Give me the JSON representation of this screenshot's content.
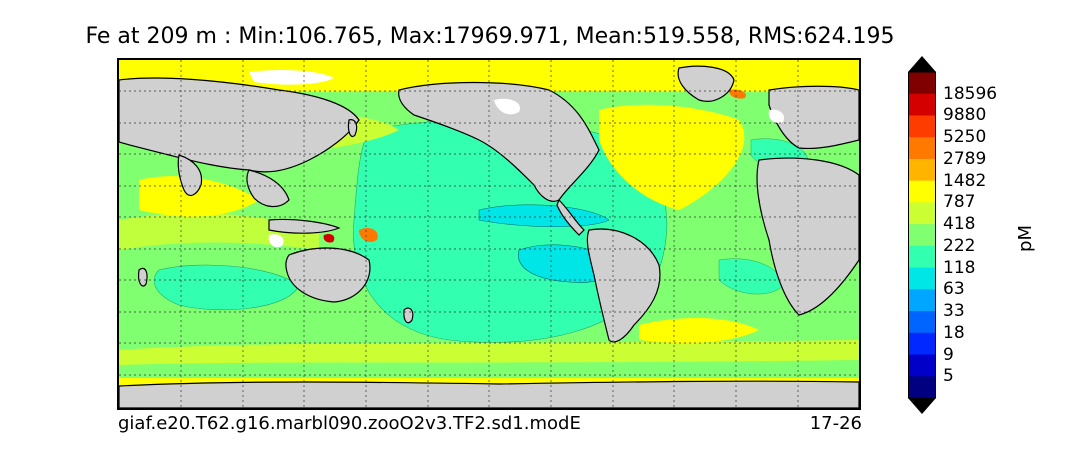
{
  "figure": {
    "title": "Fe at 209 m : Min:106.765, Max:17969.971, Mean:519.558, RMS:624.195",
    "case_name": "giaf.e20.T62.g16.marbl090.zooO2v3.TF2.sd1.modE",
    "years": "17-26",
    "units": "pM"
  },
  "colorbar": {
    "labels": [
      "18596",
      "9880",
      "5250",
      "2789",
      "1482",
      "787",
      "418",
      "222",
      "118",
      "63",
      "33",
      "18",
      "9",
      "5"
    ],
    "colors": [
      "#800000",
      "#d40000",
      "#ff3c00",
      "#ff7800",
      "#ffb400",
      "#ffff00",
      "#ccff33",
      "#80ff70",
      "#33ffb0",
      "#00e6e6",
      "#00a6ff",
      "#0064ff",
      "#0028ff",
      "#0000c8",
      "#000080"
    ],
    "extend": "both"
  },
  "map": {
    "land_color": "#d0d0d0",
    "grid": true,
    "projection": "cylindrical"
  }
}
